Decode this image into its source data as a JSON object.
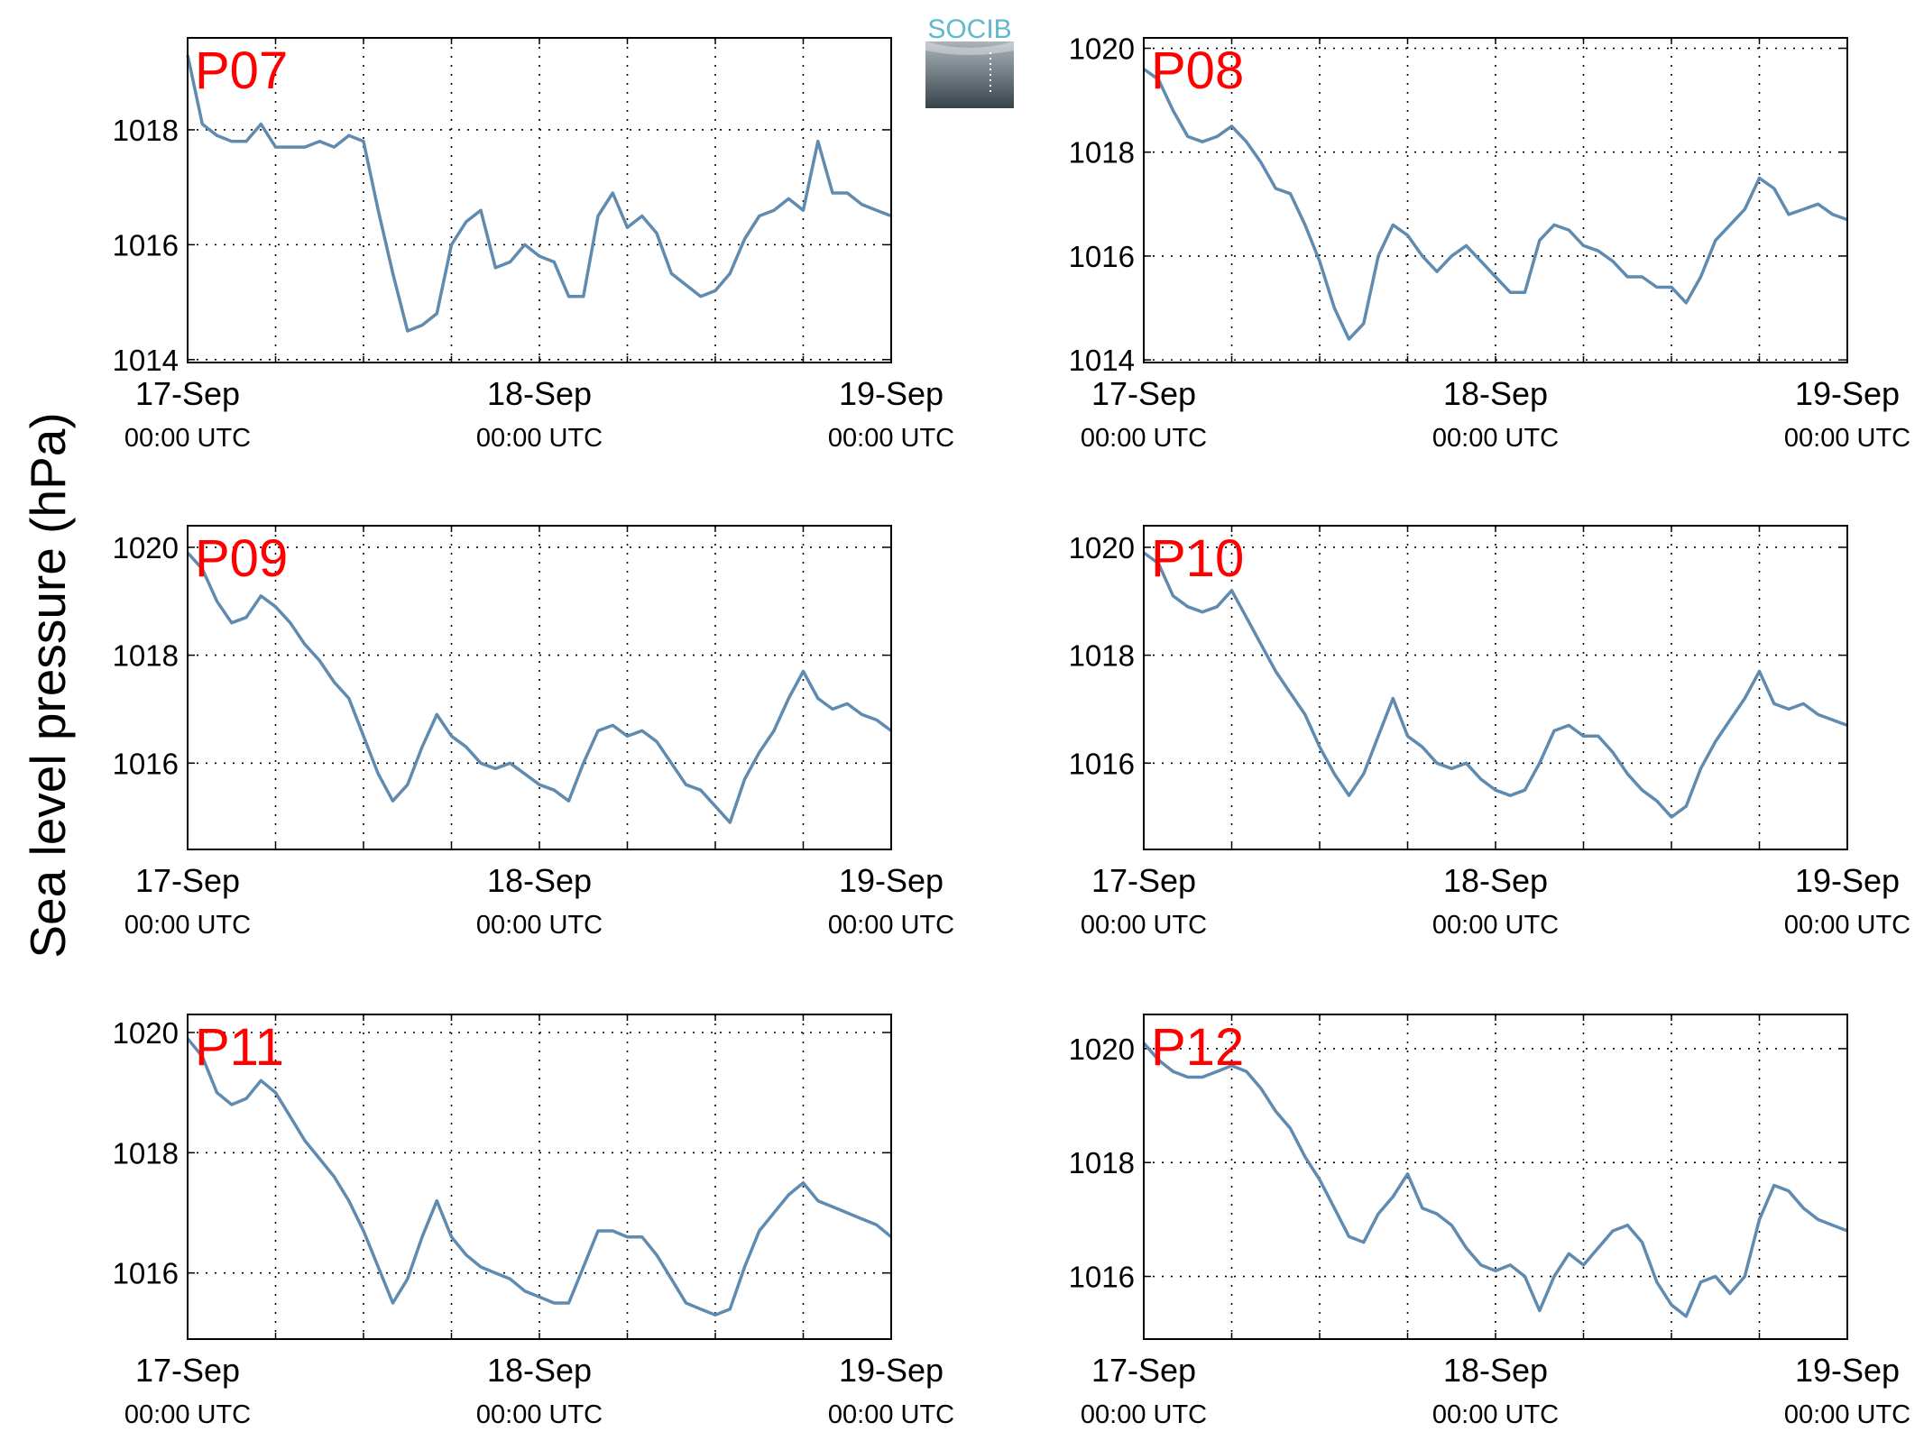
{
  "figure": {
    "ylabel": "Sea level pressure (hPa)",
    "logo_text": "SOCIB",
    "colors": {
      "line": "#5f8bb0",
      "title": "#ff0000",
      "axis": "#000000",
      "grid": "#000000",
      "logo_text": "#5fb8cc",
      "logo_top": "#aab4ba",
      "logo_bottom": "#37434b"
    }
  },
  "chart_data": [
    {
      "type": "line",
      "title": "P07",
      "x_ticks": [
        {
          "date": "17-Sep",
          "time": "00:00 UTC"
        },
        {
          "date": "18-Sep",
          "time": "00:00 UTC"
        },
        {
          "date": "19-Sep",
          "time": "00:00 UTC"
        }
      ],
      "xlim_hours": [
        0,
        48
      ],
      "ylim": [
        1013.95,
        1019.6
      ],
      "y_ticks": [
        1014,
        1016,
        1018
      ],
      "grid": true,
      "series": [
        {
          "x": [
            0,
            1,
            2,
            3,
            4,
            5,
            6,
            7,
            8,
            9,
            10,
            11,
            12,
            13,
            14,
            15,
            16,
            17,
            18,
            19,
            20,
            21,
            22,
            23,
            24,
            25,
            26,
            27,
            28,
            29,
            30,
            31,
            32,
            33,
            34,
            35,
            36,
            37,
            38,
            39,
            40,
            41,
            42,
            43,
            44,
            45,
            46,
            47,
            48
          ],
          "y": [
            1019.3,
            1018.1,
            1017.9,
            1017.8,
            1017.8,
            1018.1,
            1017.7,
            1017.7,
            1017.7,
            1017.8,
            1017.7,
            1017.9,
            1017.8,
            1016.6,
            1015.5,
            1014.5,
            1014.6,
            1014.8,
            1016.0,
            1016.4,
            1016.6,
            1015.6,
            1015.7,
            1016.0,
            1015.8,
            1015.7,
            1015.1,
            1015.1,
            1016.5,
            1016.9,
            1016.3,
            1016.5,
            1016.2,
            1015.5,
            1015.3,
            1015.1,
            1015.2,
            1015.5,
            1016.1,
            1016.5,
            1016.6,
            1016.8,
            1016.6,
            1017.8,
            1016.9,
            1016.9,
            1016.7,
            1016.6,
            1016.5
          ]
        }
      ]
    },
    {
      "type": "line",
      "title": "P08",
      "x_ticks": [
        {
          "date": "17-Sep",
          "time": "00:00 UTC"
        },
        {
          "date": "18-Sep",
          "time": "00:00 UTC"
        },
        {
          "date": "19-Sep",
          "time": "00:00 UTC"
        }
      ],
      "xlim_hours": [
        0,
        48
      ],
      "ylim": [
        1013.95,
        1020.2
      ],
      "y_ticks": [
        1014,
        1016,
        1018,
        1020
      ],
      "grid": true,
      "series": [
        {
          "x": [
            0,
            1,
            2,
            3,
            4,
            5,
            6,
            7,
            8,
            9,
            10,
            11,
            12,
            13,
            14,
            15,
            16,
            17,
            18,
            19,
            20,
            21,
            22,
            23,
            24,
            25,
            26,
            27,
            28,
            29,
            30,
            31,
            32,
            33,
            34,
            35,
            36,
            37,
            38,
            39,
            40,
            41,
            42,
            43,
            44,
            45,
            46,
            47,
            48
          ],
          "y": [
            1019.6,
            1019.4,
            1018.8,
            1018.3,
            1018.2,
            1018.3,
            1018.5,
            1018.2,
            1017.8,
            1017.3,
            1017.2,
            1016.6,
            1015.9,
            1015.0,
            1014.4,
            1014.7,
            1016.0,
            1016.6,
            1016.4,
            1016.0,
            1015.7,
            1016.0,
            1016.2,
            1015.9,
            1015.6,
            1015.3,
            1015.3,
            1016.3,
            1016.6,
            1016.5,
            1016.2,
            1016.1,
            1015.9,
            1015.6,
            1015.6,
            1015.4,
            1015.4,
            1015.1,
            1015.6,
            1016.3,
            1016.6,
            1016.9,
            1017.5,
            1017.3,
            1016.8,
            1016.9,
            1017.0,
            1016.8,
            1016.7
          ]
        }
      ]
    },
    {
      "type": "line",
      "title": "P09",
      "x_ticks": [
        {
          "date": "17-Sep",
          "time": "00:00 UTC"
        },
        {
          "date": "18-Sep",
          "time": "00:00 UTC"
        },
        {
          "date": "19-Sep",
          "time": "00:00 UTC"
        }
      ],
      "xlim_hours": [
        0,
        48
      ],
      "ylim": [
        1014.4,
        1020.4
      ],
      "y_ticks": [
        1016,
        1018,
        1020
      ],
      "grid": true,
      "series": [
        {
          "x": [
            0,
            1,
            2,
            3,
            4,
            5,
            6,
            7,
            8,
            9,
            10,
            11,
            12,
            13,
            14,
            15,
            16,
            17,
            18,
            19,
            20,
            21,
            22,
            23,
            24,
            25,
            26,
            27,
            28,
            29,
            30,
            31,
            32,
            33,
            34,
            35,
            36,
            37,
            38,
            39,
            40,
            41,
            42,
            43,
            44,
            45,
            46,
            47,
            48
          ],
          "y": [
            1019.9,
            1019.6,
            1019.0,
            1018.6,
            1018.7,
            1019.1,
            1018.9,
            1018.6,
            1018.2,
            1017.9,
            1017.5,
            1017.2,
            1016.5,
            1015.8,
            1015.3,
            1015.6,
            1016.3,
            1016.9,
            1016.5,
            1016.3,
            1016.0,
            1015.9,
            1016.0,
            1015.8,
            1015.6,
            1015.5,
            1015.3,
            1016.0,
            1016.6,
            1016.7,
            1016.5,
            1016.6,
            1016.4,
            1016.0,
            1015.6,
            1015.5,
            1015.2,
            1014.9,
            1015.7,
            1016.2,
            1016.6,
            1017.2,
            1017.7,
            1017.2,
            1017.0,
            1017.1,
            1016.9,
            1016.8,
            1016.6
          ]
        }
      ]
    },
    {
      "type": "line",
      "title": "P10",
      "x_ticks": [
        {
          "date": "17-Sep",
          "time": "00:00 UTC"
        },
        {
          "date": "18-Sep",
          "time": "00:00 UTC"
        },
        {
          "date": "19-Sep",
          "time": "00:00 UTC"
        }
      ],
      "xlim_hours": [
        0,
        48
      ],
      "ylim": [
        1014.4,
        1020.4
      ],
      "y_ticks": [
        1016,
        1018,
        1020
      ],
      "grid": true,
      "series": [
        {
          "x": [
            0,
            1,
            2,
            3,
            4,
            5,
            6,
            7,
            8,
            9,
            10,
            11,
            12,
            13,
            14,
            15,
            16,
            17,
            18,
            19,
            20,
            21,
            22,
            23,
            24,
            25,
            26,
            27,
            28,
            29,
            30,
            31,
            32,
            33,
            34,
            35,
            36,
            37,
            38,
            39,
            40,
            41,
            42,
            43,
            44,
            45,
            46,
            47,
            48
          ],
          "y": [
            1019.9,
            1019.7,
            1019.1,
            1018.9,
            1018.8,
            1018.9,
            1019.2,
            1018.7,
            1018.2,
            1017.7,
            1017.3,
            1016.9,
            1016.3,
            1015.8,
            1015.4,
            1015.8,
            1016.5,
            1017.2,
            1016.5,
            1016.3,
            1016.0,
            1015.9,
            1016.0,
            1015.7,
            1015.5,
            1015.4,
            1015.5,
            1016.0,
            1016.6,
            1016.7,
            1016.5,
            1016.5,
            1016.2,
            1015.8,
            1015.5,
            1015.3,
            1015.0,
            1015.2,
            1015.9,
            1016.4,
            1016.8,
            1017.2,
            1017.7,
            1017.1,
            1017.0,
            1017.1,
            1016.9,
            1016.8,
            1016.7
          ]
        }
      ]
    },
    {
      "type": "line",
      "title": "P11",
      "x_ticks": [
        {
          "date": "17-Sep",
          "time": "00:00 UTC"
        },
        {
          "date": "18-Sep",
          "time": "00:00 UTC"
        },
        {
          "date": "19-Sep",
          "time": "00:00 UTC"
        }
      ],
      "xlim_hours": [
        0,
        48
      ],
      "ylim": [
        1014.9,
        1020.3
      ],
      "y_ticks": [
        1016,
        1018,
        1020
      ],
      "grid": true,
      "series": [
        {
          "x": [
            0,
            1,
            2,
            3,
            4,
            5,
            6,
            7,
            8,
            9,
            10,
            11,
            12,
            13,
            14,
            15,
            16,
            17,
            18,
            19,
            20,
            21,
            22,
            23,
            24,
            25,
            26,
            27,
            28,
            29,
            30,
            31,
            32,
            33,
            34,
            35,
            36,
            37,
            38,
            39,
            40,
            41,
            42,
            43,
            44,
            45,
            46,
            47,
            48
          ],
          "y": [
            1019.9,
            1019.6,
            1019.0,
            1018.8,
            1018.9,
            1019.2,
            1019.0,
            1018.6,
            1018.2,
            1017.9,
            1017.6,
            1017.2,
            1016.7,
            1016.1,
            1015.5,
            1015.9,
            1016.6,
            1017.2,
            1016.6,
            1016.3,
            1016.1,
            1016.0,
            1015.9,
            1015.7,
            1015.6,
            1015.5,
            1015.5,
            1016.1,
            1016.7,
            1016.7,
            1016.6,
            1016.6,
            1016.3,
            1015.9,
            1015.5,
            1015.4,
            1015.3,
            1015.4,
            1016.1,
            1016.7,
            1017.0,
            1017.3,
            1017.5,
            1017.2,
            1017.1,
            1017.0,
            1016.9,
            1016.8,
            1016.6
          ]
        }
      ]
    },
    {
      "type": "line",
      "title": "P12",
      "x_ticks": [
        {
          "date": "17-Sep",
          "time": "00:00 UTC"
        },
        {
          "date": "18-Sep",
          "time": "00:00 UTC"
        },
        {
          "date": "19-Sep",
          "time": "00:00 UTC"
        }
      ],
      "xlim_hours": [
        0,
        48
      ],
      "ylim": [
        1014.9,
        1020.6
      ],
      "y_ticks": [
        1016,
        1018,
        1020
      ],
      "grid": true,
      "series": [
        {
          "x": [
            0,
            1,
            2,
            3,
            4,
            5,
            6,
            7,
            8,
            9,
            10,
            11,
            12,
            13,
            14,
            15,
            16,
            17,
            18,
            19,
            20,
            21,
            22,
            23,
            24,
            25,
            26,
            27,
            28,
            29,
            30,
            31,
            32,
            33,
            34,
            35,
            36,
            37,
            38,
            39,
            40,
            41,
            42,
            43,
            44,
            45,
            46,
            47,
            48
          ],
          "y": [
            1020.1,
            1019.8,
            1019.6,
            1019.5,
            1019.5,
            1019.6,
            1019.7,
            1019.6,
            1019.3,
            1018.9,
            1018.6,
            1018.1,
            1017.7,
            1017.2,
            1016.7,
            1016.6,
            1017.1,
            1017.4,
            1017.8,
            1017.2,
            1017.1,
            1016.9,
            1016.5,
            1016.2,
            1016.1,
            1016.2,
            1016.0,
            1015.4,
            1016.0,
            1016.4,
            1016.2,
            1016.5,
            1016.8,
            1016.9,
            1016.6,
            1015.9,
            1015.5,
            1015.3,
            1015.9,
            1016.0,
            1015.7,
            1016.0,
            1017.0,
            1017.6,
            1017.5,
            1017.2,
            1017.0,
            1016.9,
            1016.8
          ]
        }
      ]
    }
  ]
}
